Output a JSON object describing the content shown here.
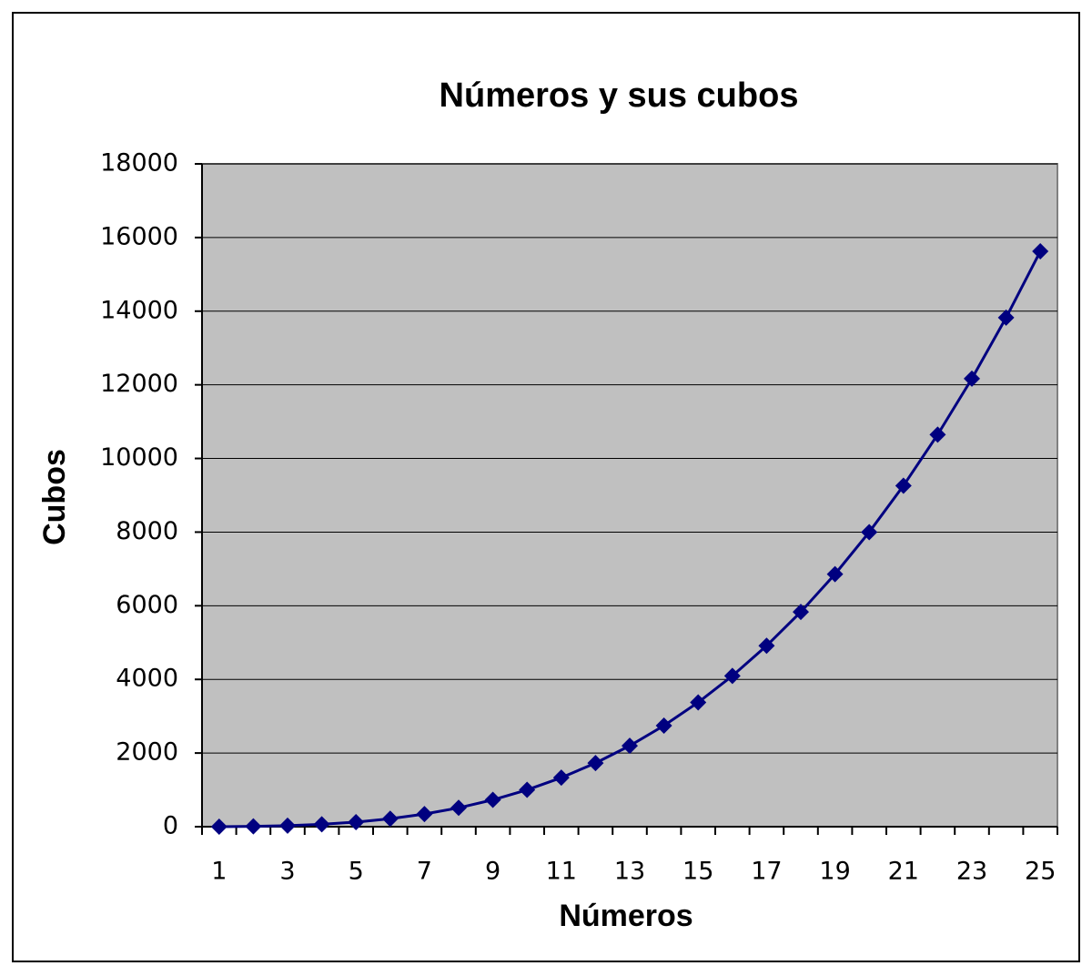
{
  "chart_data": {
    "type": "line",
    "title": "Números y sus cubos",
    "x_label": "Números",
    "y_label": "Cubos",
    "categories": [
      "1",
      null,
      "3",
      null,
      "5",
      null,
      "7",
      null,
      "9",
      null,
      "11",
      null,
      "13",
      null,
      "15",
      null,
      "17",
      null,
      "19",
      null,
      "21",
      null,
      "23",
      null,
      "25"
    ],
    "series": [
      {
        "name": "Cubos",
        "color": "#000080",
        "values": [
          1,
          8,
          27,
          64,
          125,
          216,
          343,
          512,
          729,
          1000,
          1331,
          1728,
          2197,
          2744,
          3375,
          4096,
          4913,
          5832,
          6859,
          8000,
          9261,
          10648,
          12167,
          13824,
          15625
        ]
      }
    ],
    "ylim": [
      0,
      18000
    ],
    "yticks": [
      0,
      2000,
      4000,
      6000,
      8000,
      10000,
      12000,
      14000,
      16000,
      18000
    ],
    "grid": true,
    "plot_background": "#c0c0c0"
  }
}
